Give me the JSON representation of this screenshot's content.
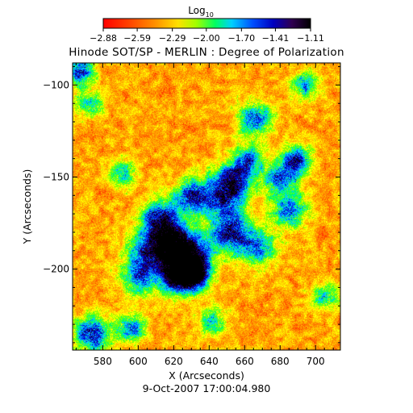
{
  "chart_data": {
    "type": "heatmap",
    "title": "Hinode SOT/SP - MERLIN : Degree of Polarization",
    "xlabel": "X (Arcseconds)",
    "ylabel": "Y (Arcseconds)",
    "date_label": "9-Oct-2007 17:00:04.980",
    "xlim": [
      563,
      714
    ],
    "ylim": [
      -244,
      -88
    ],
    "x_ticks": [
      580,
      600,
      620,
      640,
      660,
      680,
      700
    ],
    "x_tick_labels": [
      "580",
      "600",
      "620",
      "640",
      "660",
      "680",
      "700"
    ],
    "y_ticks": [
      -100,
      -150,
      -200
    ],
    "y_tick_labels": [
      "−100",
      "−150",
      "−200"
    ],
    "grid": false,
    "colorbar": {
      "title_base": "Log",
      "title_sub": "10",
      "min": -2.88,
      "max": -1.11,
      "tick_values": [
        -2.88,
        -2.59,
        -2.29,
        -2.0,
        -1.7,
        -1.41,
        -1.11
      ],
      "tick_labels": [
        "−2.88",
        "−2.59",
        "−2.29",
        "−2.00",
        "−1.70",
        "−1.41",
        "−1.11"
      ]
    },
    "colormap": [
      "#ff0000",
      "#ff4000",
      "#ff8000",
      "#ffc000",
      "#ffff00",
      "#80ff00",
      "#00ff60",
      "#00d0ff",
      "#0050ff",
      "#0000c0",
      "#200040",
      "#000000"
    ],
    "features": [
      {
        "x": 612,
        "y": -172,
        "r": 5,
        "a": 1.0
      },
      {
        "x": 620,
        "y": -186,
        "r": 6,
        "a": 1.1
      },
      {
        "x": 628,
        "y": -195,
        "r": 6,
        "a": 1.2
      },
      {
        "x": 622,
        "y": -205,
        "r": 5,
        "a": 1.0
      },
      {
        "x": 632,
        "y": -203,
        "r": 4,
        "a": 0.9
      },
      {
        "x": 605,
        "y": -190,
        "r": 6,
        "a": 0.8
      },
      {
        "x": 630,
        "y": -160,
        "r": 5,
        "a": 0.9
      },
      {
        "x": 648,
        "y": -160,
        "r": 6,
        "a": 0.9
      },
      {
        "x": 652,
        "y": -180,
        "r": 6,
        "a": 1.0
      },
      {
        "x": 655,
        "y": -150,
        "r": 5,
        "a": 0.8
      },
      {
        "x": 662,
        "y": -140,
        "r": 4,
        "a": 0.7
      },
      {
        "x": 666,
        "y": -118,
        "r": 5,
        "a": 0.8
      },
      {
        "x": 680,
        "y": -150,
        "r": 5,
        "a": 0.8
      },
      {
        "x": 690,
        "y": -140,
        "r": 4,
        "a": 0.9
      },
      {
        "x": 685,
        "y": -168,
        "r": 5,
        "a": 0.8
      },
      {
        "x": 693,
        "y": -100,
        "r": 4,
        "a": 0.7
      },
      {
        "x": 572,
        "y": -110,
        "r": 4,
        "a": 0.6
      },
      {
        "x": 574,
        "y": -235,
        "r": 5,
        "a": 1.0
      },
      {
        "x": 567,
        "y": -92,
        "r": 4,
        "a": 0.9
      },
      {
        "x": 596,
        "y": -232,
        "r": 4,
        "a": 0.8
      },
      {
        "x": 591,
        "y": -148,
        "r": 4,
        "a": 0.6
      },
      {
        "x": 668,
        "y": -188,
        "r": 5,
        "a": 0.7
      },
      {
        "x": 705,
        "y": -215,
        "r": 4,
        "a": 0.6
      },
      {
        "x": 642,
        "y": -228,
        "r": 4,
        "a": 0.6
      },
      {
        "x": 600,
        "y": -205,
        "r": 5,
        "a": 0.7
      }
    ]
  }
}
